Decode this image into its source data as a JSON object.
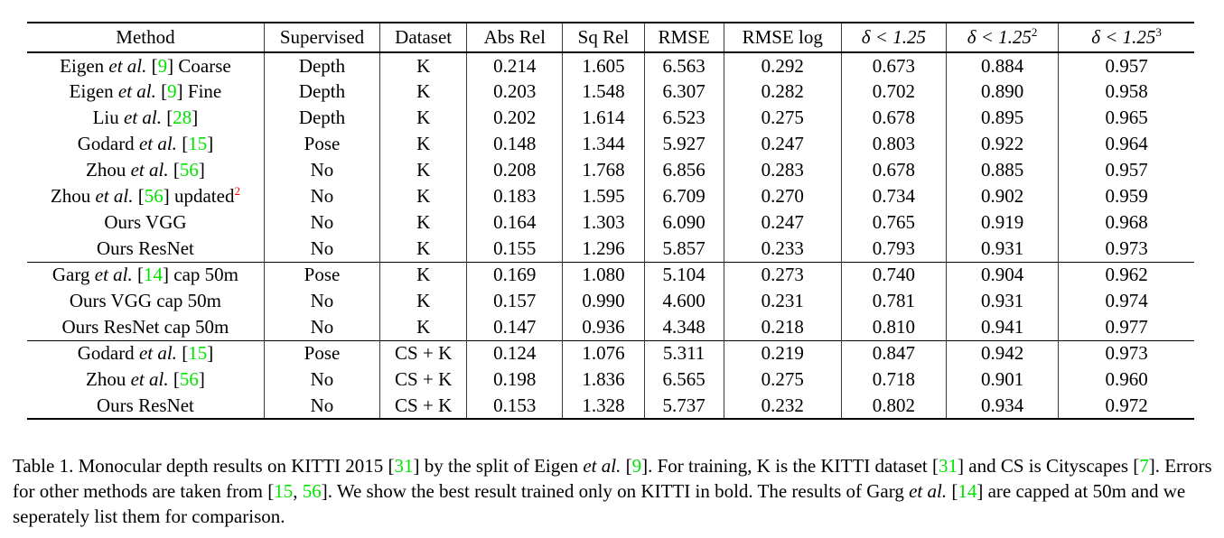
{
  "colors": {
    "citation_green": "#00e400",
    "footnote_red": "#ff0000"
  },
  "table": {
    "headers": [
      {
        "label": "Method",
        "math": false,
        "sup": ""
      },
      {
        "label": "Supervised",
        "math": false,
        "sup": ""
      },
      {
        "label": "Dataset",
        "math": false,
        "sup": ""
      },
      {
        "label": "Abs Rel",
        "math": false,
        "sup": ""
      },
      {
        "label": "Sq Rel",
        "math": false,
        "sup": ""
      },
      {
        "label": "RMSE",
        "math": false,
        "sup": ""
      },
      {
        "label": "RMSE log",
        "math": false,
        "sup": ""
      },
      {
        "label": "δ < 1.25",
        "math": true,
        "sup": ""
      },
      {
        "label": "δ < 1.25",
        "math": true,
        "sup": "2"
      },
      {
        "label": "δ < 1.25",
        "math": true,
        "sup": "3"
      }
    ],
    "groups": [
      {
        "rows": [
          {
            "method": [
              [
                "Eigen ",
                "n"
              ],
              [
                "et al.",
                "i"
              ],
              [
                " [",
                "n"
              ],
              [
                "9",
                "g"
              ],
              [
                "] Coarse",
                "n"
              ]
            ],
            "supervised": "Depth",
            "dataset": "K",
            "values": [
              "0.214",
              "1.605",
              "6.563",
              "0.292",
              "0.673",
              "0.884",
              "0.957"
            ],
            "bold": []
          },
          {
            "method": [
              [
                "Eigen ",
                "n"
              ],
              [
                "et al.",
                "i"
              ],
              [
                " [",
                "n"
              ],
              [
                "9",
                "g"
              ],
              [
                "] Fine",
                "n"
              ]
            ],
            "supervised": "Depth",
            "dataset": "K",
            "values": [
              "0.203",
              "1.548",
              "6.307",
              "0.282",
              "0.702",
              "0.890",
              "0.958"
            ],
            "bold": []
          },
          {
            "method": [
              [
                "Liu ",
                "n"
              ],
              [
                "et al.",
                "i"
              ],
              [
                " [",
                "n"
              ],
              [
                "28",
                "g"
              ],
              [
                "]",
                "n"
              ]
            ],
            "supervised": "Depth",
            "dataset": "K",
            "values": [
              "0.202",
              "1.614",
              "6.523",
              "0.275",
              "0.678",
              "0.895",
              "0.965"
            ],
            "bold": []
          },
          {
            "method": [
              [
                "Godard ",
                "n"
              ],
              [
                "et al.",
                "i"
              ],
              [
                " [",
                "n"
              ],
              [
                "15",
                "g"
              ],
              [
                "]",
                "n"
              ]
            ],
            "supervised": "Pose",
            "dataset": "K",
            "values": [
              "0.148",
              "1.344",
              "5.927",
              "0.247",
              "0.803",
              "0.922",
              "0.964"
            ],
            "bold": [
              0,
              4
            ]
          },
          {
            "method": [
              [
                "Zhou ",
                "n"
              ],
              [
                "et al.",
                "i"
              ],
              [
                " [",
                "n"
              ],
              [
                "56",
                "g"
              ],
              [
                "]",
                "n"
              ]
            ],
            "supervised": "No",
            "dataset": "K",
            "values": [
              "0.208",
              "1.768",
              "6.856",
              "0.283",
              "0.678",
              "0.885",
              "0.957"
            ],
            "bold": []
          },
          {
            "method": [
              [
                "Zhou ",
                "n"
              ],
              [
                "et al.",
                "i"
              ],
              [
                " [",
                "n"
              ],
              [
                "56",
                "g"
              ],
              [
                "] updated",
                "n"
              ],
              [
                "2",
                "r"
              ]
            ],
            "supervised": "No",
            "dataset": "K",
            "values": [
              "0.183",
              "1.595",
              "6.709",
              "0.270",
              "0.734",
              "0.902",
              "0.959"
            ],
            "bold": []
          },
          {
            "method": [
              [
                "Ours VGG",
                "n"
              ]
            ],
            "supervised": "No",
            "dataset": "K",
            "values": [
              "0.164",
              "1.303",
              "6.090",
              "0.247",
              "0.765",
              "0.919",
              "0.968"
            ],
            "bold": []
          },
          {
            "method": [
              [
                "Ours ResNet",
                "n"
              ]
            ],
            "supervised": "No",
            "dataset": "K",
            "values": [
              "0.155",
              "1.296",
              "5.857",
              "0.233",
              "0.793",
              "0.931",
              "0.973"
            ],
            "bold": [
              1,
              2,
              3,
              5,
              6
            ]
          }
        ]
      },
      {
        "rows": [
          {
            "method": [
              [
                "Garg ",
                "n"
              ],
              [
                "et al.",
                "i"
              ],
              [
                " [",
                "n"
              ],
              [
                "14",
                "g"
              ],
              [
                "] cap 50m",
                "n"
              ]
            ],
            "supervised": "Pose",
            "dataset": "K",
            "values": [
              "0.169",
              "1.080",
              "5.104",
              "0.273",
              "0.740",
              "0.904",
              "0.962"
            ],
            "bold": []
          },
          {
            "method": [
              [
                "Ours VGG cap 50m",
                "n"
              ]
            ],
            "supervised": "No",
            "dataset": "K",
            "values": [
              "0.157",
              "0.990",
              "4.600",
              "0.231",
              "0.781",
              "0.931",
              "0.974"
            ],
            "bold": []
          },
          {
            "method": [
              [
                "Ours ResNet cap 50m",
                "n"
              ]
            ],
            "supervised": "No",
            "dataset": "K",
            "values": [
              "0.147",
              "0.936",
              "4.348",
              "0.218",
              "0.810",
              "0.941",
              "0.977"
            ],
            "bold": [
              0,
              1,
              2,
              3,
              4,
              5,
              6
            ]
          }
        ]
      },
      {
        "rows": [
          {
            "method": [
              [
                "Godard ",
                "n"
              ],
              [
                "et al.",
                "i"
              ],
              [
                " [",
                "n"
              ],
              [
                "15",
                "g"
              ],
              [
                "]",
                "n"
              ]
            ],
            "supervised": "Pose",
            "dataset": "CS + K",
            "values": [
              "0.124",
              "1.076",
              "5.311",
              "0.219",
              "0.847",
              "0.942",
              "0.973"
            ],
            "bold": [
              0,
              1,
              2,
              3,
              4,
              5,
              6
            ]
          },
          {
            "method": [
              [
                "Zhou ",
                "n"
              ],
              [
                "et al.",
                "i"
              ],
              [
                " [",
                "n"
              ],
              [
                "56",
                "g"
              ],
              [
                "]",
                "n"
              ]
            ],
            "supervised": "No",
            "dataset": "CS + K",
            "values": [
              "0.198",
              "1.836",
              "6.565",
              "0.275",
              "0.718",
              "0.901",
              "0.960"
            ],
            "bold": []
          },
          {
            "method": [
              [
                "Ours ResNet",
                "n"
              ]
            ],
            "supervised": "No",
            "dataset": "CS + K",
            "values": [
              "0.153",
              "1.328",
              "5.737",
              "0.232",
              "0.802",
              "0.934",
              "0.972"
            ],
            "bold": []
          }
        ]
      }
    ]
  },
  "caption": {
    "segments": [
      [
        "Table 1. Monocular depth results on KITTI 2015 [",
        "n"
      ],
      [
        "31",
        "g"
      ],
      [
        "] by the split of Eigen ",
        "n"
      ],
      [
        "et al.",
        "i"
      ],
      [
        " [",
        "n"
      ],
      [
        "9",
        "g"
      ],
      [
        "]. For training, K is the KITTI dataset [",
        "n"
      ],
      [
        "31",
        "g"
      ],
      [
        "] and CS is Cityscapes [",
        "n"
      ],
      [
        "7",
        "g"
      ],
      [
        "]. Errors for other methods are taken from [",
        "n"
      ],
      [
        "15",
        "g"
      ],
      [
        ", ",
        "n"
      ],
      [
        "56",
        "g"
      ],
      [
        "]. We show the best result trained only on KITTI in bold. The results of Garg ",
        "n"
      ],
      [
        "et al.",
        "i"
      ],
      [
        " [",
        "n"
      ],
      [
        "14",
        "g"
      ],
      [
        "] are capped at 50m and we seperately list them for comparison.",
        "n"
      ]
    ]
  }
}
